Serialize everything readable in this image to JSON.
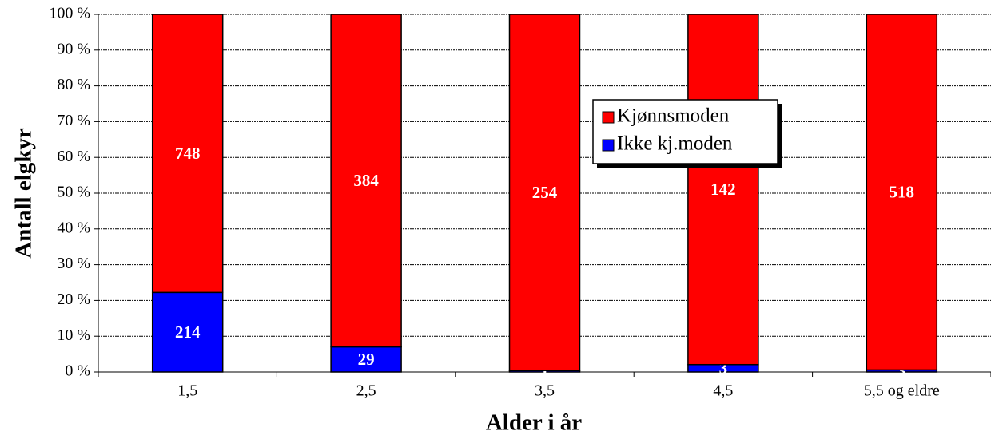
{
  "chart_data": {
    "type": "bar",
    "stacking": "percent",
    "x_label": "Alder i år",
    "y_label": "Antall elgkyr",
    "categories": [
      "1,5",
      "2,5",
      "3,5",
      "4,5",
      "5,5 og eldre"
    ],
    "series": [
      {
        "name": "Ikke kj.moden",
        "color": "#0000ff",
        "values": [
          214,
          29,
          1,
          3,
          3
        ]
      },
      {
        "name": "Kjønnsmoden",
        "color": "#ff0000",
        "values": [
          748,
          384,
          254,
          142,
          518
        ]
      }
    ],
    "ylim": [
      0,
      100
    ],
    "yticks": [
      {
        "value": 0,
        "label": "0 %"
      },
      {
        "value": 10,
        "label": "10 %"
      },
      {
        "value": 20,
        "label": "20 %"
      },
      {
        "value": 30,
        "label": "30 %"
      },
      {
        "value": 40,
        "label": "40 %"
      },
      {
        "value": 50,
        "label": "50 %"
      },
      {
        "value": 60,
        "label": "60 %"
      },
      {
        "value": 70,
        "label": "70 %"
      },
      {
        "value": 80,
        "label": "80 %"
      },
      {
        "value": 90,
        "label": "90 %"
      },
      {
        "value": 100,
        "label": "100 %"
      }
    ],
    "grid": true
  }
}
